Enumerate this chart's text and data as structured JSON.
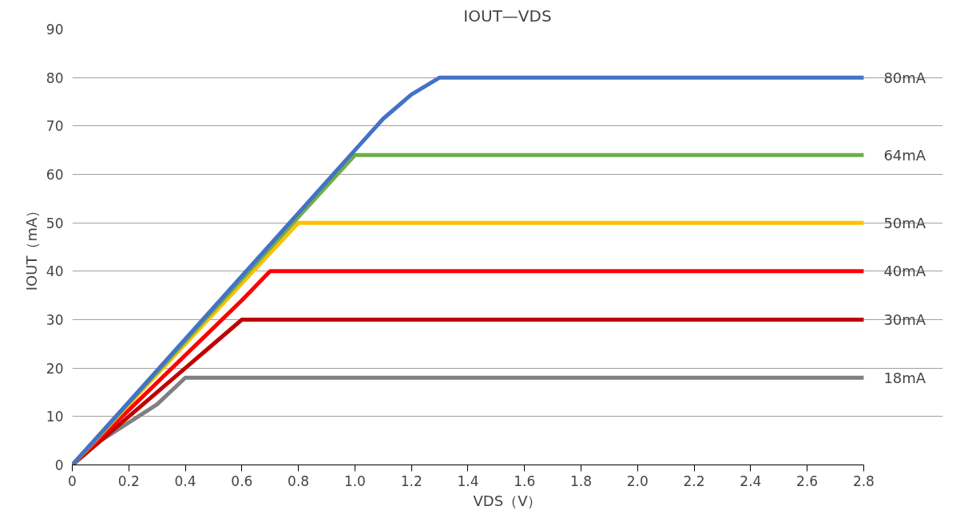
{
  "chart_data": {
    "type": "line",
    "title": "IOUT—VDS",
    "xlabel": "VDS（V）",
    "ylabel": "IOUT（mA）",
    "xlim": [
      0,
      2.8
    ],
    "xticks": [
      {
        "value": 0,
        "label": "0"
      },
      0.2,
      0.4,
      0.6,
      0.8,
      {
        "value": 1,
        "label": "1.0"
      },
      1.2,
      1.4,
      1.6,
      1.8,
      {
        "value": 2,
        "label": "2.0"
      },
      2.2,
      2.4,
      2.6,
      2.8
    ],
    "ylim": [
      0,
      90
    ],
    "yticks": [
      0,
      10,
      20,
      30,
      40,
      50,
      60,
      70,
      80,
      90
    ],
    "grid": "y",
    "legend": false,
    "marker": "none",
    "line_style": "solid",
    "series": [
      {
        "name": "18mA",
        "color": "#808080",
        "x": [
          0,
          0.1,
          0.3,
          0.4,
          2.8
        ],
        "values": [
          0,
          5,
          12.5,
          18,
          18
        ]
      },
      {
        "name": "30mA",
        "color": "#c00000",
        "x": [
          0,
          0.4,
          0.6,
          2.8
        ],
        "values": [
          0,
          20,
          30,
          30
        ]
      },
      {
        "name": "40mA",
        "color": "#ff0000",
        "x": [
          0,
          0.6,
          0.7,
          2.8
        ],
        "values": [
          0,
          34,
          40,
          40
        ]
      },
      {
        "name": "50mA",
        "color": "#ffc000",
        "x": [
          0,
          0.8,
          2.8
        ],
        "values": [
          0,
          50,
          50
        ]
      },
      {
        "name": "64mA",
        "color": "#70ad47",
        "x": [
          0,
          1.0,
          2.8
        ],
        "values": [
          0,
          64,
          64
        ]
      },
      {
        "name": "80mA",
        "color": "#4472c4",
        "x": [
          0,
          1.0,
          1.1,
          1.2,
          1.3,
          2.8
        ],
        "values": [
          0,
          65,
          71.5,
          76.5,
          80,
          80
        ]
      }
    ]
  }
}
